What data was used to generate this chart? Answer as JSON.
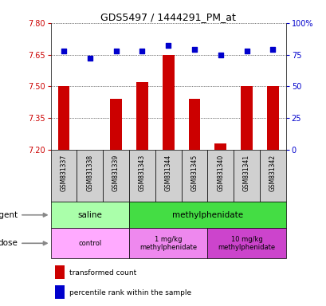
{
  "title": "GDS5497 / 1444291_PM_at",
  "samples": [
    "GSM831337",
    "GSM831338",
    "GSM831339",
    "GSM831343",
    "GSM831344",
    "GSM831345",
    "GSM831340",
    "GSM831341",
    "GSM831342"
  ],
  "transformed_counts": [
    7.5,
    7.2,
    7.44,
    7.52,
    7.65,
    7.44,
    7.23,
    7.5,
    7.5
  ],
  "percentile_ranks": [
    78,
    72,
    78,
    78,
    82,
    79,
    75,
    78,
    79
  ],
  "ylim_left": [
    7.2,
    7.8
  ],
  "yticks_left": [
    7.2,
    7.35,
    7.5,
    7.65,
    7.8
  ],
  "ylim_right": [
    0,
    100
  ],
  "yticks_right": [
    0,
    25,
    50,
    75,
    100
  ],
  "yticklabels_right": [
    "0",
    "25",
    "50",
    "75",
    "100%"
  ],
  "bar_color": "#cc0000",
  "dot_color": "#0000cc",
  "bar_bottom": 7.2,
  "agent_groups": [
    {
      "label": "saline",
      "color": "#aaffaa",
      "start": 0,
      "end": 3
    },
    {
      "label": "methylphenidate",
      "color": "#44dd44",
      "start": 3,
      "end": 9
    }
  ],
  "dose_groups": [
    {
      "label": "control",
      "color": "#ffaaff",
      "start": 0,
      "end": 3
    },
    {
      "label": "1 mg/kg\nmethylphenidate",
      "color": "#ee88ee",
      "start": 3,
      "end": 6
    },
    {
      "label": "10 mg/kg\nmethylphenidate",
      "color": "#cc44cc",
      "start": 6,
      "end": 9
    }
  ],
  "legend_bar_color": "#cc0000",
  "legend_dot_color": "#0000cc",
  "legend_bar_label": "transformed count",
  "legend_dot_label": "percentile rank within the sample",
  "tick_label_color_left": "#cc0000",
  "tick_label_color_right": "#0000cc",
  "grid_color": "#000000",
  "sample_box_color": "#d0d0d0",
  "xlabel_agent": "agent",
  "xlabel_dose": "dose"
}
